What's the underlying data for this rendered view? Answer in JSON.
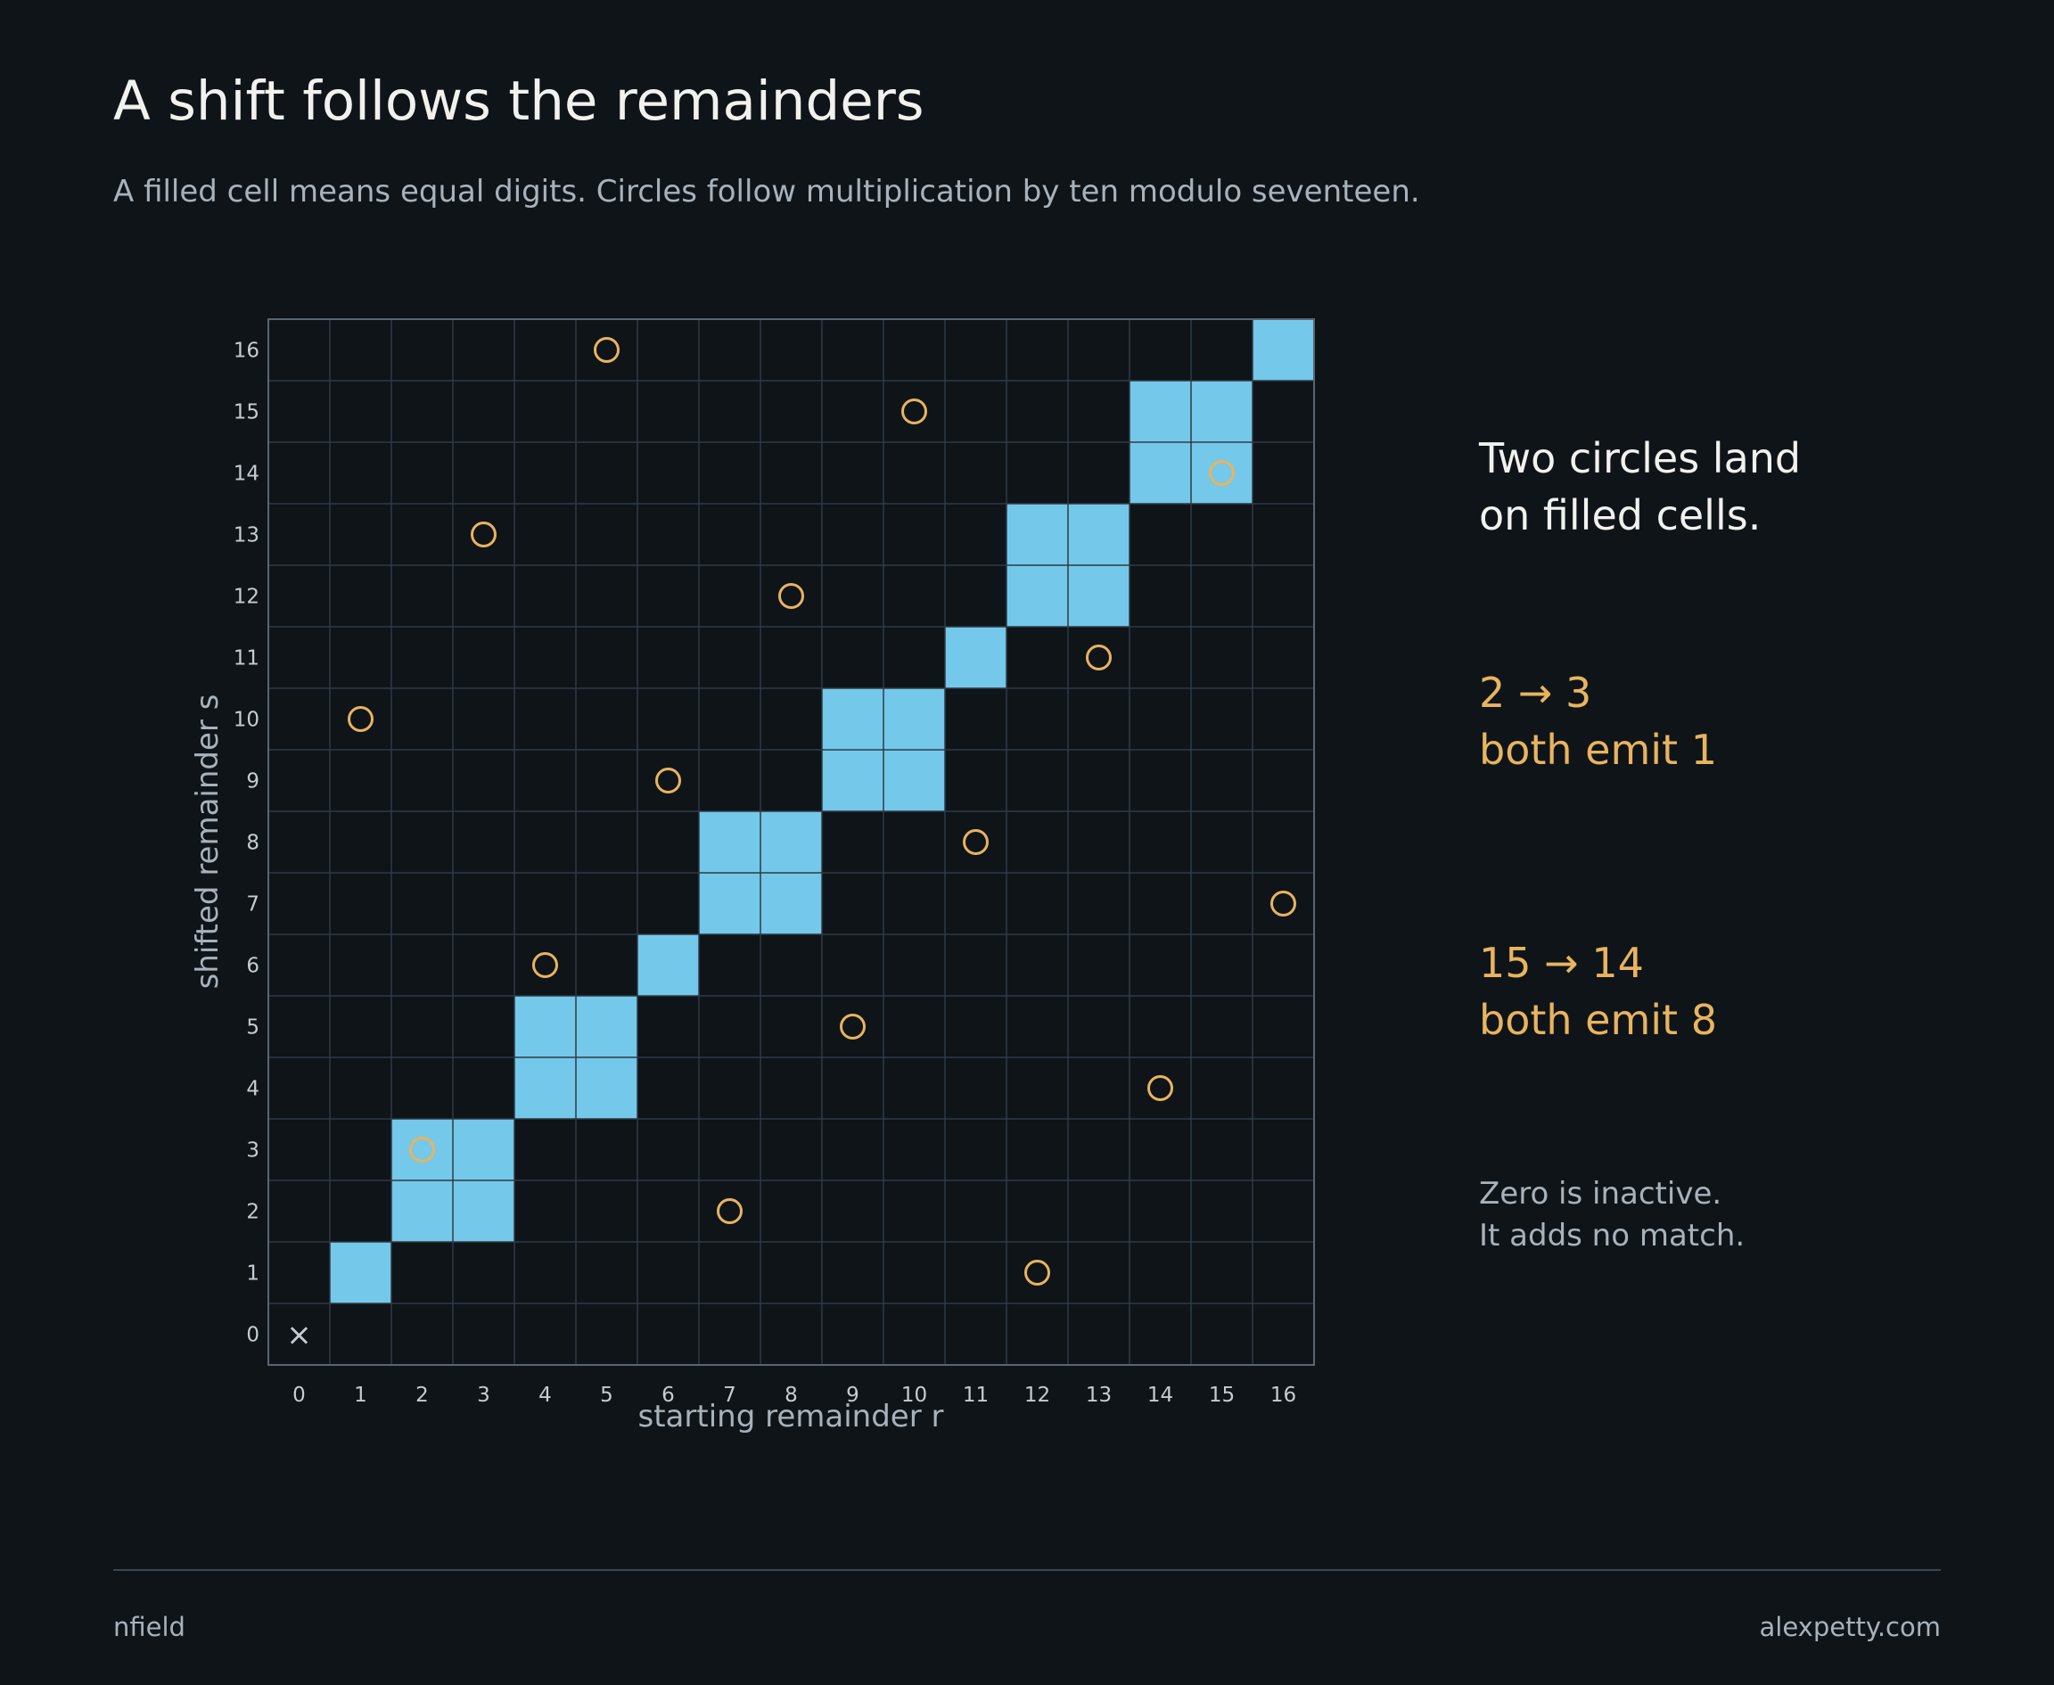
{
  "header": {
    "title": "A shift follows the remainders",
    "subtitle": "A filled cell means equal digits. Circles follow multiplication by ten modulo seventeen."
  },
  "chart_data": {
    "type": "heatmap",
    "xlabel": "starting remainder r",
    "ylabel": "shifted remainder s",
    "x": [
      0,
      1,
      2,
      3,
      4,
      5,
      6,
      7,
      8,
      9,
      10,
      11,
      12,
      13,
      14,
      15,
      16
    ],
    "y": [
      0,
      1,
      2,
      3,
      4,
      5,
      6,
      7,
      8,
      9,
      10,
      11,
      12,
      13,
      14,
      15,
      16
    ],
    "xlim": [
      0,
      16
    ],
    "ylim": [
      0,
      16
    ],
    "grid": true,
    "digit_groups": [
      [
        1
      ],
      [
        2,
        3
      ],
      [
        4,
        5
      ],
      [
        6
      ],
      [
        7,
        8
      ],
      [
        9,
        10
      ],
      [
        11
      ],
      [
        12,
        13
      ],
      [
        14,
        15
      ],
      [
        16
      ]
    ],
    "circles": [
      {
        "r": 1,
        "s": 10
      },
      {
        "r": 2,
        "s": 3
      },
      {
        "r": 3,
        "s": 13
      },
      {
        "r": 4,
        "s": 6
      },
      {
        "r": 5,
        "s": 16
      },
      {
        "r": 6,
        "s": 9
      },
      {
        "r": 7,
        "s": 2
      },
      {
        "r": 8,
        "s": 12
      },
      {
        "r": 9,
        "s": 5
      },
      {
        "r": 10,
        "s": 15
      },
      {
        "r": 11,
        "s": 8
      },
      {
        "r": 12,
        "s": 1
      },
      {
        "r": 13,
        "s": 11
      },
      {
        "r": 14,
        "s": 4
      },
      {
        "r": 15,
        "s": 14
      },
      {
        "r": 16,
        "s": 7
      }
    ],
    "inactive": {
      "r": 0,
      "s": 0,
      "marker": "×"
    },
    "colors": {
      "fill": "#74c8e9",
      "circle": "#e8b45e",
      "grid": "#2f3a44",
      "frame": "#5a6570",
      "tick": "#c4ccd2",
      "label": "#a8b2ba"
    }
  },
  "notes": {
    "lead": [
      "Two circles land",
      "on filled cells."
    ],
    "case_a": [
      "2 → 3",
      "both emit 1"
    ],
    "case_b": [
      "15 → 14",
      "both emit 8"
    ],
    "small": [
      "Zero is inactive.",
      "It adds no match."
    ]
  },
  "footer": {
    "left": "nfield",
    "right": "alexpetty.com"
  }
}
